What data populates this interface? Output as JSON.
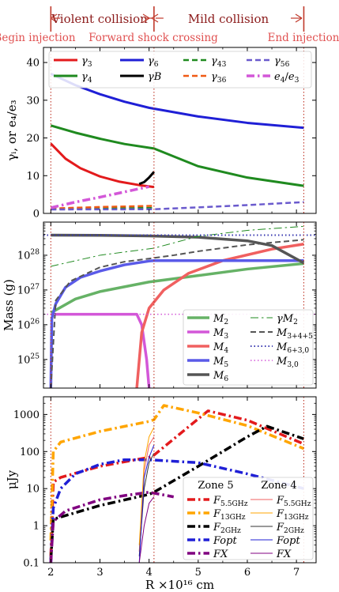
{
  "header": {
    "violent_label": "Violent collision",
    "mild_label": "Mild collision",
    "begin_label": "Begin injection",
    "shock_label": "Forward shock crossing",
    "end_label": "End injection",
    "marker_color": "#c0392b",
    "event_radii": [
      2.0,
      4.1,
      7.15
    ]
  },
  "colors": {
    "red": "#e31a1c",
    "green": "#1f8a1f",
    "blue": "#1f1fd6",
    "black": "#000000",
    "orange_red": "#f05a14",
    "slate_blue": "#6a5acd",
    "violet": "#d357d8",
    "gold": "#ffa500",
    "purple": "#800080"
  },
  "chart_data": [
    {
      "type": "line",
      "name": "lorentz-factors",
      "xlabel": "",
      "ylabel": "γᵢ, or e₄/e₃",
      "xlim": [
        1.85,
        7.4
      ],
      "ylim": [
        0,
        44
      ],
      "yticks": [
        0,
        10,
        20,
        30,
        40
      ],
      "legend": "top",
      "legend_cols": 4,
      "series": [
        {
          "name": "γ3",
          "color": "#e31a1c",
          "dash": "solid",
          "width": 3,
          "x": [
            2.0,
            2.3,
            2.6,
            3.0,
            3.4,
            3.8,
            4.1
          ],
          "y": [
            18.5,
            14.5,
            12.0,
            9.8,
            8.4,
            7.5,
            7.0
          ]
        },
        {
          "name": "γ4",
          "color": "#1f8a1f",
          "dash": "solid",
          "width": 3,
          "x": [
            2.0,
            2.5,
            3.0,
            3.5,
            4.1,
            5.0,
            6.0,
            7.15
          ],
          "y": [
            23.3,
            21.4,
            19.8,
            18.4,
            17.2,
            12.5,
            9.5,
            7.3
          ]
        },
        {
          "name": "γ6",
          "color": "#1f1fd6",
          "dash": "solid",
          "width": 3,
          "x": [
            2.0,
            2.5,
            3.0,
            3.5,
            4.0,
            5.0,
            6.0,
            7.15
          ],
          "y": [
            37.0,
            34.0,
            31.6,
            29.6,
            28.0,
            25.7,
            24.0,
            22.7
          ]
        },
        {
          "name": "γB",
          "color": "#000000",
          "dash": "solid",
          "width": 3,
          "x": [
            3.8,
            3.9,
            4.0,
            4.1
          ],
          "y": [
            7.8,
            8.3,
            9.5,
            11.0
          ]
        },
        {
          "name": "γ43",
          "color": "#1f8a1f",
          "dash": "dash",
          "width": 2.5,
          "x": [
            2.0,
            3.0,
            4.1
          ],
          "y": [
            1.2,
            1.3,
            1.45
          ]
        },
        {
          "name": "γ36",
          "color": "#f05a14",
          "dash": "dash",
          "width": 2.5,
          "x": [
            2.0,
            3.0,
            4.1
          ],
          "y": [
            1.3,
            1.7,
            2.0
          ]
        },
        {
          "name": "γ56",
          "color": "#6a5acd",
          "dash": "dash",
          "width": 2.5,
          "x": [
            2.0,
            4.1,
            5.0,
            6.0,
            7.15
          ],
          "y": [
            1.05,
            1.1,
            1.6,
            2.2,
            3.0
          ]
        },
        {
          "name": "e4/e3",
          "color": "#d357d8",
          "dash": "dashdot",
          "width": 3.5,
          "x": [
            2.0,
            2.5,
            3.0,
            3.5,
            4.0
          ],
          "y": [
            1.5,
            3.0,
            4.3,
            5.7,
            7.1
          ]
        }
      ]
    },
    {
      "type": "line",
      "name": "mass",
      "xlabel": "",
      "ylabel": "Mass (g)",
      "log_y": true,
      "xlim": [
        1.85,
        7.4
      ],
      "ylim": [
        1.5e+24,
        9e+28
      ],
      "yticks": [
        1e+25,
        1e+26,
        1e+27,
        1e+28
      ],
      "yticklabels": [
        "10^25",
        "10^26",
        "10^27",
        "10^28"
      ],
      "legend": "bottom-right",
      "legend_cols": 2,
      "series": [
        {
          "name": "M2",
          "color": "#66b266",
          "dash": "solid",
          "width": 3.5,
          "x": [
            2.0,
            2.5,
            3.0,
            4.0,
            5.0,
            6.0,
            7.15
          ],
          "y": [
            2.2e+26,
            5.5e+26,
            9e+26,
            1.7e+27,
            2.6e+27,
            4e+27,
            5.8e+27
          ]
        },
        {
          "name": "M3",
          "color": "#d357d8",
          "dash": "solid",
          "width": 3.5,
          "x": [
            2.0,
            3.0,
            3.5,
            3.75,
            3.85,
            3.95,
            4.0
          ],
          "y": [
            2e+26,
            2e+26,
            2e+26,
            2e+26,
            1e+26,
            1e+25,
            1.5e+24
          ]
        },
        {
          "name": "M4",
          "color": "#f06060",
          "dash": "solid",
          "width": 3.5,
          "x": [
            3.75,
            3.85,
            4.0,
            4.3,
            4.8,
            5.5,
            6.5,
            7.15
          ],
          "y": [
            1.5e+24,
            6e+25,
            3e+26,
            1e+27,
            3e+27,
            7e+27,
            1.5e+28,
            2.1e+28
          ]
        },
        {
          "name": "M5",
          "color": "#5a5ae8",
          "dash": "solid",
          "width": 3.5,
          "x": [
            2.0,
            2.02,
            2.1,
            2.3,
            2.6,
            3.0,
            3.5,
            4.0,
            4.1,
            7.15
          ],
          "y": [
            1.5e+24,
            1.5e+26,
            4e+26,
            1.2e+27,
            2.3e+27,
            3.5e+27,
            5.3e+27,
            6.8e+27,
            7e+27,
            7e+27
          ]
        },
        {
          "name": "M6",
          "color": "#555555",
          "dash": "solid",
          "width": 3.5,
          "x": [
            2.0,
            3.0,
            4.0,
            5.0,
            6.0,
            6.5,
            7.15
          ],
          "y": [
            3.8e+28,
            3.75e+28,
            3.6e+28,
            3.3e+28,
            2.6e+28,
            1.9e+28,
            6e+27
          ]
        },
        {
          "name": "γM2",
          "color": "#1f8a1f",
          "dash": "dashdot",
          "width": 1,
          "x": [
            2.0,
            3.0,
            4.1,
            5.0,
            6.0,
            7.15
          ],
          "y": [
            4.8e+27,
            1e+28,
            1.6e+28,
            3.5e+28,
            5.2e+28,
            6.8e+28
          ]
        },
        {
          "name": "M3+4+5",
          "color": "#555555",
          "dash": "dash",
          "width": 2,
          "x": [
            2.0,
            2.1,
            2.4,
            3.0,
            3.5,
            4.0,
            4.5,
            5.0,
            6.0,
            7.15
          ],
          "y": [
            1.5e+24,
            5e+26,
            1.8e+27,
            4.5e+27,
            6.5e+27,
            8e+27,
            1e+28,
            1.3e+28,
            2e+28,
            2.8e+28
          ]
        },
        {
          "name": "M6+3,0",
          "color": "#3a3ab0",
          "dash": "dot",
          "width": 2,
          "x": [
            1.85,
            7.4
          ],
          "y": [
            3.8e+28,
            3.8e+28
          ]
        },
        {
          "name": "M3,0",
          "color": "#d357d8",
          "dash": "dot",
          "width": 1.5,
          "x": [
            1.85,
            7.4
          ],
          "y": [
            2e+26,
            2e+26
          ]
        }
      ]
    },
    {
      "type": "line",
      "name": "flux",
      "xlabel": "R ×10¹⁶ cm",
      "ylabel": "μJy",
      "log_y": true,
      "xlim": [
        1.85,
        7.4
      ],
      "ylim": [
        0.1,
        3000
      ],
      "xticks": [
        2,
        3,
        4,
        5,
        6,
        7
      ],
      "yticks": [
        0.1,
        1,
        10,
        100,
        1000
      ],
      "yticklabels": [
        "0.1",
        "1",
        "10",
        "100",
        "1000"
      ],
      "legend": "bottom-right",
      "legend_cols": 2,
      "legend_headers": [
        "Zone 5",
        "Zone 4"
      ],
      "series": [
        {
          "name": "F5.5GHz",
          "legend_group": "Zone 5",
          "color": "#e31a1c",
          "dash": "dashdot",
          "width": 3.5,
          "x": [
            2.0,
            2.05,
            2.2,
            3.0,
            4.0,
            4.1,
            5.2,
            6.0,
            7.15
          ],
          "y": [
            0.15,
            15,
            20,
            40,
            70,
            80,
            1250,
            700,
            160
          ]
        },
        {
          "name": "F13GHz",
          "legend_group": "Zone 5",
          "color": "#ffa500",
          "dash": "dashdot",
          "width": 3.5,
          "x": [
            2.0,
            2.05,
            2.2,
            3.0,
            4.0,
            4.1,
            4.3,
            5.0,
            6.0,
            7.15
          ],
          "y": [
            0.4,
            100,
            180,
            350,
            650,
            720,
            1750,
            1100,
            500,
            120
          ]
        },
        {
          "name": "F2GHz",
          "legend_group": "Zone 5",
          "color": "#000000",
          "dash": "dashdot",
          "width": 3.5,
          "x": [
            2.0,
            2.05,
            3.0,
            4.0,
            4.1,
            5.0,
            6.0,
            6.4,
            7.15
          ],
          "y": [
            0.12,
            1.5,
            3.5,
            7,
            8,
            40,
            250,
            480,
            220
          ]
        },
        {
          "name": "Fopt",
          "legend_group": "Zone 5",
          "color": "#1f1fd6",
          "dash": "dashdot",
          "width": 3.5,
          "x": [
            2.0,
            2.05,
            2.2,
            2.5,
            3.0,
            3.5,
            4.0,
            5.0,
            6.0,
            7.15
          ],
          "y": [
            0.1,
            3,
            10,
            25,
            45,
            60,
            60,
            50,
            25,
            10
          ]
        },
        {
          "name": "FX",
          "legend_group": "Zone 5",
          "color": "#800080",
          "dash": "dashdot",
          "width": 3.5,
          "x": [
            2.0,
            2.05,
            2.3,
            3.0,
            3.5,
            4.0,
            4.5
          ],
          "y": [
            0.1,
            1.3,
            2.5,
            5,
            6.5,
            8,
            6
          ]
        },
        {
          "name": "F5.5GHz",
          "legend_group": "Zone 4",
          "color": "#f06060",
          "dash": "solid",
          "width": 1,
          "x": [
            3.8,
            3.9,
            4.0,
            4.1
          ],
          "y": [
            0.2,
            30,
            150,
            250
          ]
        },
        {
          "name": "F13GHz",
          "legend_group": "Zone 4",
          "color": "#ffa500",
          "dash": "solid",
          "width": 1,
          "x": [
            3.8,
            3.9,
            4.0,
            4.1
          ],
          "y": [
            0.3,
            50,
            250,
            450
          ]
        },
        {
          "name": "F2GHz",
          "legend_group": "Zone 4",
          "color": "#333333",
          "dash": "solid",
          "width": 1,
          "x": [
            3.8,
            3.9,
            4.0,
            4.1
          ],
          "y": [
            0.15,
            10,
            50,
            90
          ]
        },
        {
          "name": "Fopt",
          "legend_group": "Zone 4",
          "color": "#1f1fd6",
          "dash": "solid",
          "width": 1,
          "x": [
            3.8,
            3.9,
            4.0,
            4.1
          ],
          "y": [
            0.1,
            20,
            70,
            150
          ]
        },
        {
          "name": "FX",
          "legend_group": "Zone 4",
          "color": "#800080",
          "dash": "solid",
          "width": 1,
          "x": [
            3.8,
            3.9,
            4.0,
            4.1
          ],
          "y": [
            0.1,
            1,
            4,
            6
          ]
        }
      ]
    }
  ]
}
